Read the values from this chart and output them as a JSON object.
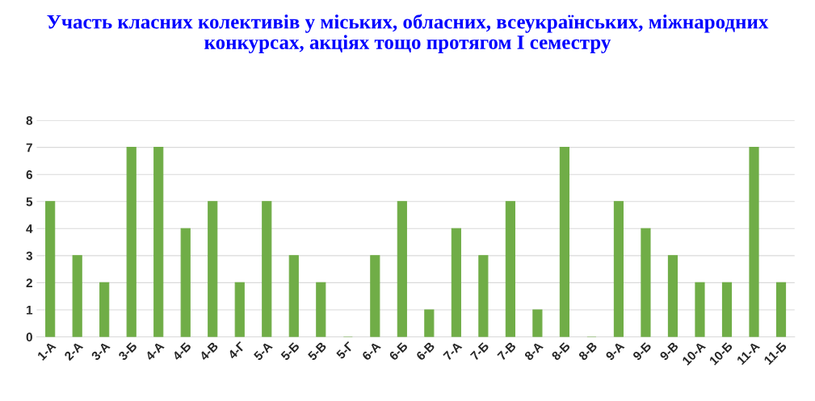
{
  "chart_data": {
    "type": "bar",
    "title": "Участь класних колективів у міських, обласних, всеукраїнських, міжнародних конкурсах, акціях тощо протягом І семестру",
    "categories": [
      "1-А",
      "2-А",
      "3-А",
      "3-Б",
      "4-А",
      "4-Б",
      "4-В",
      "4-Г",
      "5-А",
      "5-Б",
      "5-В",
      "5-Г",
      "6-А",
      "6-Б",
      "6-В",
      "7-А",
      "7-Б",
      "7-В",
      "8-А",
      "8-Б",
      "8-В",
      "9-А",
      "9-Б",
      "9-В",
      "10-А",
      "10-Б",
      "11-А",
      "11-Б"
    ],
    "values": [
      5,
      3,
      2,
      7,
      7,
      4,
      5,
      2,
      5,
      3,
      2,
      0,
      3,
      5,
      1,
      4,
      3,
      5,
      1,
      7,
      0,
      5,
      4,
      3,
      2,
      2,
      7,
      2
    ],
    "color": "#70ad47",
    "ylim": [
      0,
      8
    ],
    "yticks": [
      0,
      1,
      2,
      3,
      4,
      5,
      6,
      7,
      8
    ],
    "grid": "y"
  }
}
